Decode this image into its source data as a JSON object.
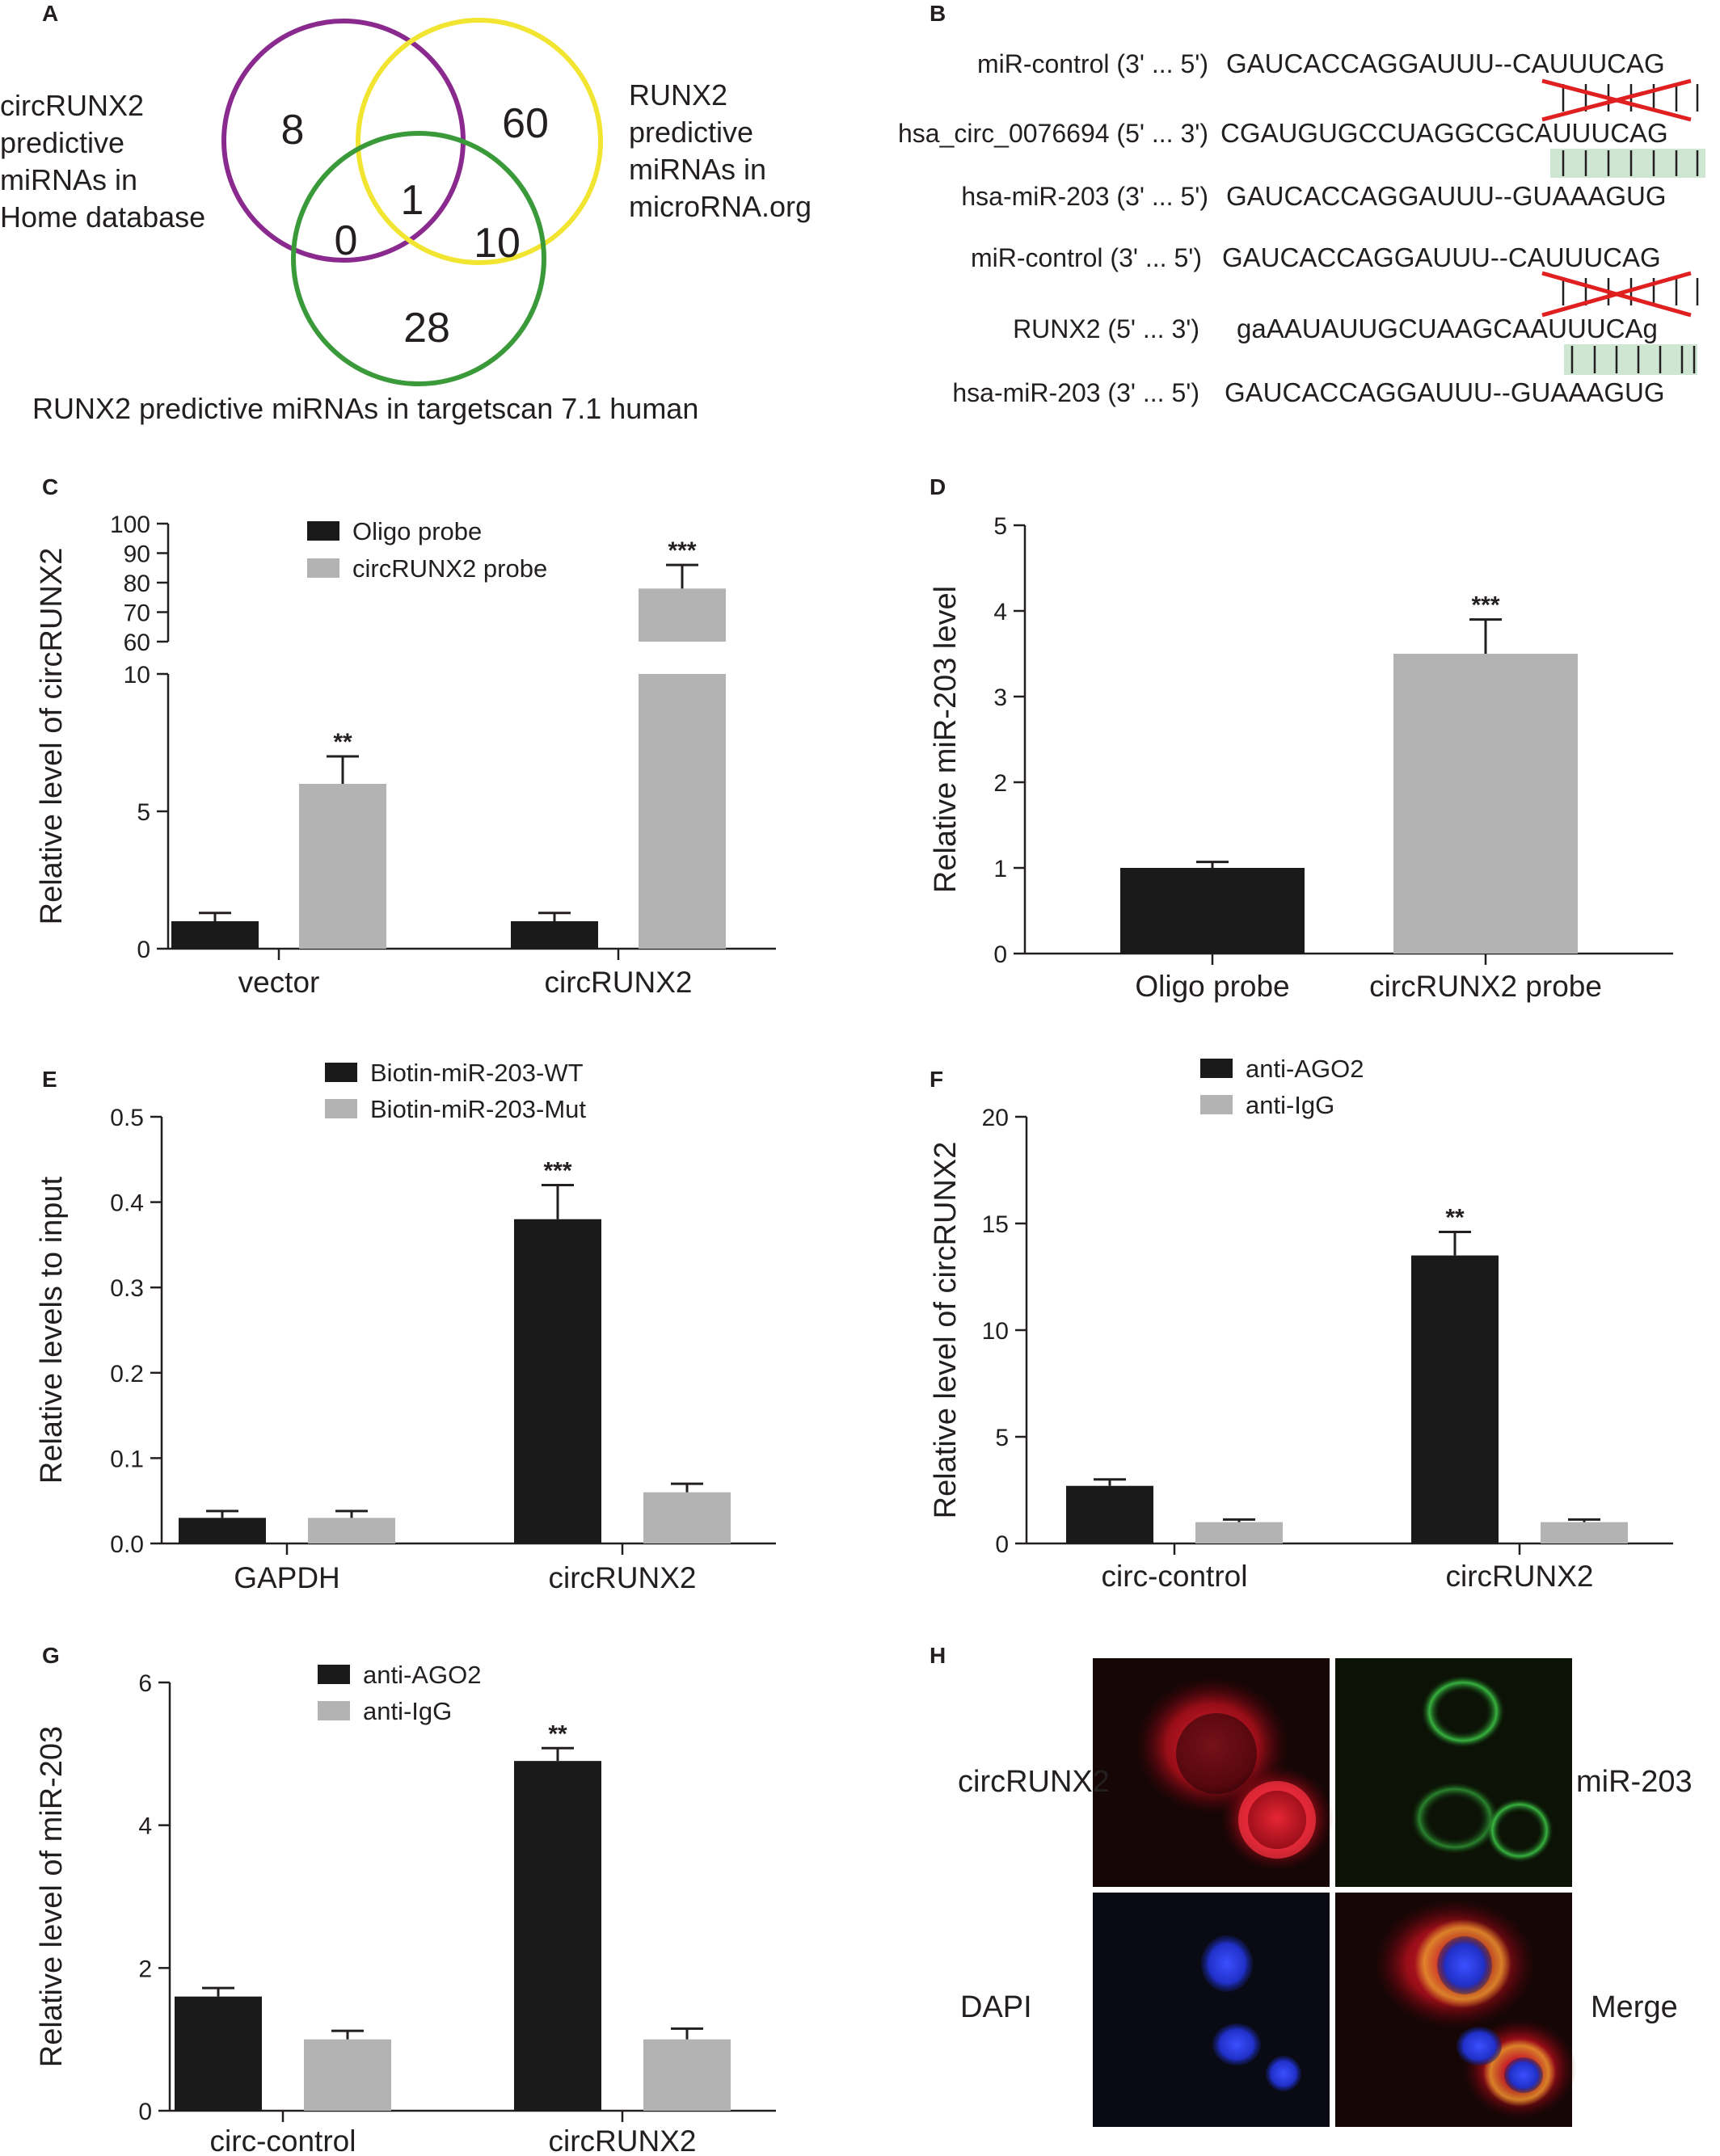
{
  "figure": {
    "panel_letters": {
      "A": "A",
      "B": "B",
      "C": "C",
      "D": "D",
      "E": "E",
      "F": "F",
      "G": "G",
      "H": "H"
    },
    "colors": {
      "black_bar": "#1a1a1a",
      "gray_bar": "#b3b3b3",
      "venn_purple": "#8a2a8e",
      "venn_yellow": "#f2e531",
      "venn_green": "#3a9a3a",
      "mismatch_red": "#e02020",
      "pair_green": "#cfe6d2"
    }
  },
  "panel_a": {
    "label_left": [
      "circRUNX2",
      "predictive",
      "miRNAs in",
      "Home database"
    ],
    "label_right": [
      "RUNX2",
      "predictive",
      "miRNAs in",
      "microRNA.org"
    ],
    "label_bottom": "RUNX2 predictive miRNAs in targetscan 7.1 human",
    "counts": {
      "purple_only": "8",
      "yellow_only": "60",
      "all_three": "1",
      "purple_green": "0",
      "yellow_green": "10",
      "green_only": "28"
    }
  },
  "panel_b": {
    "rows": [
      {
        "label": "miR-control (3' ... 5')",
        "seq": "GAUCACCAGGAUUU--CAUUUCAG",
        "mark": "mismatch"
      },
      {
        "label": "hsa_circ_0076694 (5' ... 3')",
        "seq": "CGAUGUGCCUAGGCGCAUUUCAG",
        "mark": "match"
      },
      {
        "label": "hsa-miR-203 (3' ... 5')",
        "seq": "GAUCACCAGGAUUU--GUAAAGUG",
        "mark": "none"
      },
      {
        "label": "miR-control (3' ... 5')",
        "seq": "GAUCACCAGGAUUU--CAUUUCAG",
        "mark": "mismatch"
      },
      {
        "label": "RUNX2 (5' ... 3')",
        "seq": "gaAAUAUUGCUAAGCAAUUUCAg",
        "mark": "match"
      },
      {
        "label": "hsa-miR-203 (3' ... 5')",
        "seq": "GAUCACCAGGAUUU--GUAAAGUG",
        "mark": "none"
      }
    ]
  },
  "panel_h": {
    "labels": {
      "circ": "circRUNX2",
      "mir": "miR-203",
      "dapi": "DAPI",
      "merge": "Merge"
    }
  },
  "chart_data": [
    {
      "id": "C",
      "type": "bar",
      "categories": [
        "vector",
        "circRUNX2"
      ],
      "series": [
        {
          "name": "Oligo probe",
          "values": [
            1.0,
            1.0
          ],
          "errors": [
            0.3,
            0.3
          ],
          "color": "#1a1a1a"
        },
        {
          "name": "circRUNX2 probe",
          "values": [
            6.0,
            78
          ],
          "errors": [
            1.0,
            8
          ],
          "color": "#b3b3b3"
        }
      ],
      "significance": [
        {
          "category": 0,
          "series": 1,
          "text": "**"
        },
        {
          "category": 1,
          "series": 1,
          "text": "***"
        }
      ],
      "ylabel": "Relative level of circRUNX2",
      "broken_axis": {
        "lower": [
          0,
          10
        ],
        "upper": [
          60,
          100
        ]
      },
      "yticks_lower": [
        "0",
        "5",
        "10"
      ],
      "yticks_upper": [
        "60",
        "70",
        "80",
        "90",
        "100"
      ],
      "legend": "top-left"
    },
    {
      "id": "D",
      "type": "bar",
      "categories": [
        "Oligo probe",
        "circRUNX2 probe"
      ],
      "series": [
        {
          "values": [
            1.0,
            3.5
          ],
          "errors": [
            0.07,
            0.4
          ],
          "colors": [
            "#1a1a1a",
            "#b3b3b3"
          ]
        }
      ],
      "significance": [
        {
          "category": 1,
          "text": "***"
        }
      ],
      "ylabel": "Relative miR-203 level",
      "ylim": [
        0,
        5
      ],
      "yticks": [
        "0",
        "1",
        "2",
        "3",
        "4",
        "5"
      ]
    },
    {
      "id": "E",
      "type": "bar",
      "categories": [
        "GAPDH",
        "circRUNX2"
      ],
      "series": [
        {
          "name": "Biotin-miR-203-WT",
          "values": [
            0.03,
            0.38
          ],
          "errors": [
            0.008,
            0.04
          ],
          "color": "#1a1a1a"
        },
        {
          "name": "Biotin-miR-203-Mut",
          "values": [
            0.03,
            0.06
          ],
          "errors": [
            0.008,
            0.01
          ],
          "color": "#b3b3b3"
        }
      ],
      "significance": [
        {
          "category": 1,
          "series": 0,
          "text": "***"
        }
      ],
      "ylabel": "Relative levels to input",
      "ylim": [
        0,
        0.5
      ],
      "yticks": [
        "0.0",
        "0.1",
        "0.2",
        "0.3",
        "0.4",
        "0.5"
      ],
      "legend": "top"
    },
    {
      "id": "F",
      "type": "bar",
      "categories": [
        "circ-control",
        "circRUNX2"
      ],
      "series": [
        {
          "name": "anti-AGO2",
          "values": [
            2.7,
            13.5
          ],
          "errors": [
            0.3,
            1.1
          ],
          "color": "#1a1a1a"
        },
        {
          "name": "anti-IgG",
          "values": [
            1.0,
            1.0
          ],
          "errors": [
            0.12,
            0.12
          ],
          "color": "#b3b3b3"
        }
      ],
      "significance": [
        {
          "category": 1,
          "series": 0,
          "text": "**"
        }
      ],
      "ylabel": "Relative level of circRUNX2",
      "ylim": [
        0,
        20
      ],
      "yticks": [
        "0",
        "5",
        "10",
        "15",
        "20"
      ],
      "legend": "top"
    },
    {
      "id": "G",
      "type": "bar",
      "categories": [
        "circ-control",
        "circRUNX2"
      ],
      "series": [
        {
          "name": "anti-AGO2",
          "values": [
            1.6,
            4.9
          ],
          "errors": [
            0.12,
            0.18
          ],
          "color": "#1a1a1a"
        },
        {
          "name": "anti-IgG",
          "values": [
            1.0,
            1.0
          ],
          "errors": [
            0.12,
            0.15
          ],
          "color": "#b3b3b3"
        }
      ],
      "significance": [
        {
          "category": 1,
          "series": 0,
          "text": "**"
        }
      ],
      "ylabel": "Relative level of miR-203",
      "ylim": [
        0,
        6
      ],
      "yticks": [
        "0",
        "2",
        "4",
        "6"
      ],
      "legend": "top"
    }
  ]
}
